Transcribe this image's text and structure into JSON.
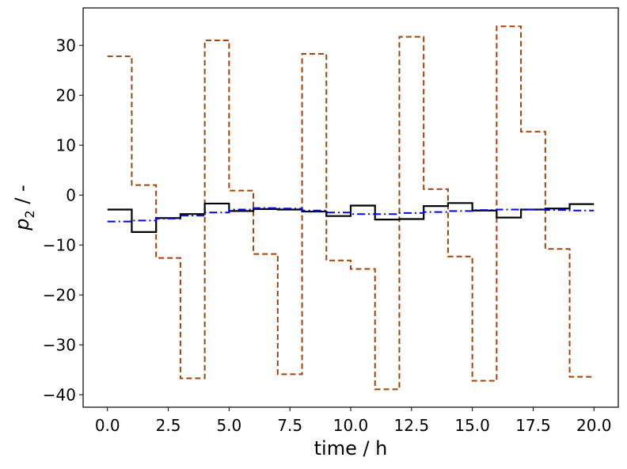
{
  "chart_data": {
    "type": "line",
    "step": "post",
    "xlabel": "time / h",
    "ylabel_base": "p",
    "ylabel_sub": "2",
    "ylabel_suffix": " / -",
    "xlim": [
      -1.0,
      21.0
    ],
    "ylim": [
      -42.5,
      37.5
    ],
    "xticks": [
      0.0,
      2.5,
      5.0,
      7.5,
      10.0,
      12.5,
      15.0,
      17.5,
      20.0
    ],
    "xtick_labels": [
      "0.0",
      "2.5",
      "5.0",
      "7.5",
      "10.0",
      "12.5",
      "15.0",
      "17.5",
      "20.0"
    ],
    "yticks": [
      -40,
      -30,
      -20,
      -10,
      0,
      10,
      20,
      30
    ],
    "ytick_labels": [
      "−40",
      "−30",
      "−20",
      "−10",
      "0",
      "10",
      "20",
      "30"
    ],
    "grid": false,
    "x": [
      0,
      1,
      2,
      3,
      4,
      5,
      6,
      7,
      8,
      9,
      10,
      11,
      12,
      13,
      14,
      15,
      16,
      17,
      18,
      19,
      20
    ],
    "series": [
      {
        "id": "orange-dashed",
        "color": "#a0440a",
        "dash": "dashed",
        "values": [
          27.8,
          2.0,
          -12.6,
          -36.7,
          31.0,
          0.9,
          -11.8,
          -35.9,
          28.3,
          -13.1,
          -14.8,
          -38.9,
          31.7,
          1.2,
          -12.3,
          -37.2,
          33.8,
          12.7,
          -10.8,
          -36.4,
          -36.4
        ]
      },
      {
        "id": "black-solid",
        "color": "#000000",
        "dash": "solid",
        "values": [
          -2.9,
          -7.4,
          -4.6,
          -3.8,
          -1.7,
          -3.2,
          -2.8,
          -2.9,
          -3.3,
          -4.2,
          -2.1,
          -4.9,
          -4.8,
          -2.2,
          -1.6,
          -3.1,
          -4.5,
          -2.9,
          -2.7,
          -1.8,
          -1.8
        ]
      },
      {
        "id": "blue-dashdot",
        "color": "#0000ff",
        "dash": "dashdot",
        "values": [
          -5.3,
          -5.1,
          -4.7,
          -4.1,
          -3.5,
          -2.9,
          -2.6,
          -2.7,
          -3.1,
          -3.5,
          -3.8,
          -3.8,
          -3.6,
          -3.4,
          -3.2,
          -3.0,
          -2.9,
          -2.9,
          -3.0,
          -3.1,
          -3.1
        ]
      }
    ]
  }
}
